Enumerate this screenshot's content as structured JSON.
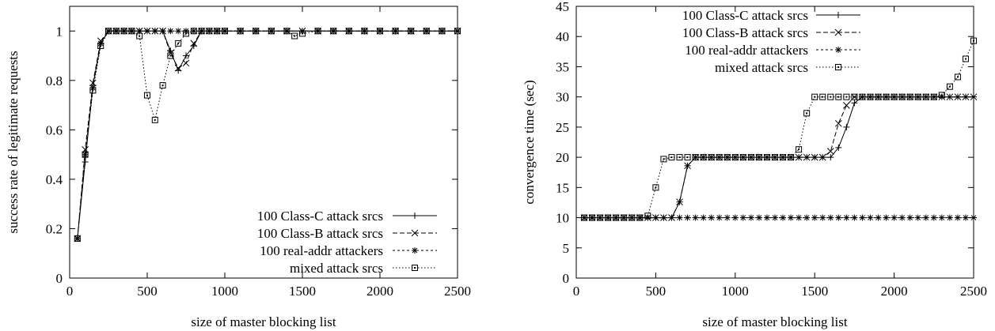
{
  "chart_data": [
    {
      "type": "line",
      "title": "",
      "xlabel": "size of master blocking list",
      "ylabel": "success rate of legitimate requests",
      "xlim": [
        0,
        2500
      ],
      "ylim": [
        0,
        1.1
      ],
      "xticks": [
        0,
        500,
        1000,
        1500,
        2000,
        2500
      ],
      "xtick_labels": [
        "0",
        "500",
        "1000",
        "1500",
        "2000",
        "2500"
      ],
      "yticks": [
        0,
        0.2,
        0.4,
        0.6,
        0.8,
        1
      ],
      "ytick_labels": [
        "0",
        "0.2",
        "0.4",
        "0.6",
        "0.8",
        "1"
      ],
      "grid": false,
      "legend_position": "bottom-right",
      "series": [
        {
          "name": "100 Class-C attack srcs",
          "marker": "plus",
          "dash": "solid",
          "x": [
            50,
            100,
            150,
            200,
            250,
            300,
            350,
            400,
            450,
            500,
            550,
            600,
            650,
            700,
            750,
            800,
            850,
            900,
            950,
            1000,
            1100,
            1200,
            1300,
            1400,
            1500,
            1600,
            1700,
            1800,
            1900,
            2000,
            2100,
            2200,
            2300,
            2400,
            2500
          ],
          "y": [
            0.16,
            0.47,
            0.78,
            0.95,
            1,
            1,
            1,
            1,
            1,
            1,
            1,
            1,
            0.92,
            0.84,
            0.9,
            0.94,
            1,
            1,
            1,
            1,
            1,
            1,
            1,
            1,
            1,
            1,
            1,
            1,
            1,
            1,
            1,
            1,
            1,
            1,
            1
          ]
        },
        {
          "name": "100 Class-B attack srcs",
          "marker": "x",
          "dash": "dashed",
          "x": [
            50,
            100,
            150,
            200,
            250,
            300,
            350,
            400,
            450,
            500,
            550,
            600,
            650,
            700,
            750,
            800,
            850,
            900,
            950,
            1000,
            1100,
            1200,
            1300,
            1400,
            1500,
            1600,
            1700,
            1800,
            1900,
            2000,
            2100,
            2200,
            2300,
            2400,
            2500
          ],
          "y": [
            0.16,
            0.52,
            0.79,
            0.96,
            1,
            1,
            1,
            1,
            1,
            1,
            1,
            1,
            0.91,
            0.85,
            0.87,
            0.95,
            1,
            1,
            1,
            1,
            1,
            1,
            1,
            1,
            1,
            1,
            1,
            1,
            1,
            1,
            1,
            1,
            1,
            1,
            1
          ]
        },
        {
          "name": "100 real-addr attackers",
          "marker": "star",
          "dash": "dotted",
          "x": [
            50,
            100,
            150,
            200,
            250,
            300,
            350,
            400,
            450,
            500,
            550,
            600,
            650,
            700,
            750,
            800,
            850,
            900,
            950,
            1000,
            1100,
            1200,
            1300,
            1400,
            1500,
            1600,
            1700,
            1800,
            1900,
            2000,
            2100,
            2200,
            2300,
            2400,
            2500
          ],
          "y": [
            0.16,
            0.5,
            0.77,
            0.95,
            1,
            1,
            1,
            1,
            1,
            1,
            1,
            1,
            1,
            1,
            1,
            1,
            1,
            1,
            1,
            1,
            1,
            1,
            1,
            1,
            1,
            1,
            1,
            1,
            1,
            1,
            1,
            1,
            1,
            1,
            1
          ]
        },
        {
          "name": "mixed attack srcs",
          "marker": "square",
          "dash": "fine-dotted",
          "x": [
            50,
            100,
            150,
            200,
            250,
            300,
            350,
            400,
            450,
            500,
            550,
            600,
            650,
            700,
            750,
            800,
            850,
            900,
            950,
            1000,
            1100,
            1200,
            1300,
            1400,
            1450,
            1500,
            1600,
            1700,
            1800,
            1900,
            2000,
            2100,
            2200,
            2300,
            2400,
            2500
          ],
          "y": [
            0.16,
            0.5,
            0.76,
            0.94,
            1,
            1,
            1,
            1,
            0.98,
            0.74,
            0.64,
            0.78,
            0.9,
            0.95,
            0.99,
            1,
            1,
            1,
            1,
            1,
            1,
            1,
            1,
            1,
            0.98,
            0.99,
            1,
            1,
            1,
            1,
            1,
            1,
            1,
            1,
            1,
            1
          ]
        }
      ]
    },
    {
      "type": "line",
      "title": "",
      "xlabel": "size of master blocking list",
      "ylabel": "convergence time (sec)",
      "xlim": [
        0,
        2500
      ],
      "ylim": [
        0,
        45
      ],
      "xticks": [
        0,
        500,
        1000,
        1500,
        2000,
        2500
      ],
      "xtick_labels": [
        "0",
        "500",
        "1000",
        "1500",
        "2000",
        "2500"
      ],
      "yticks": [
        0,
        5,
        10,
        15,
        20,
        25,
        30,
        35,
        40,
        45
      ],
      "ytick_labels": [
        "0",
        "5",
        "10",
        "15",
        "20",
        "25",
        "30",
        "35",
        "40",
        "45"
      ],
      "grid": false,
      "legend_position": "top-center",
      "series": [
        {
          "name": "100 Class-C attack srcs",
          "marker": "plus",
          "dash": "solid",
          "x": [
            50,
            100,
            150,
            200,
            250,
            300,
            350,
            400,
            450,
            500,
            550,
            600,
            650,
            700,
            750,
            800,
            850,
            900,
            950,
            1000,
            1050,
            1100,
            1150,
            1200,
            1250,
            1300,
            1350,
            1400,
            1450,
            1500,
            1550,
            1600,
            1650,
            1700,
            1750,
            1800,
            1850,
            1900,
            1950,
            2000,
            2050,
            2100,
            2150,
            2200,
            2250,
            2300,
            2350,
            2400,
            2450,
            2500
          ],
          "y": [
            10,
            10,
            10,
            10,
            10,
            10,
            10,
            10,
            10,
            10,
            10,
            10,
            12.6,
            18.6,
            20,
            20,
            20,
            20,
            20,
            20,
            20,
            20,
            20,
            20,
            20,
            20,
            20,
            20,
            20,
            20,
            20,
            20,
            21.6,
            25,
            29,
            30,
            30,
            30,
            30,
            30,
            30,
            30,
            30,
            30,
            30,
            30,
            30,
            30,
            30,
            30
          ]
        },
        {
          "name": "100 Class-B attack srcs",
          "marker": "x",
          "dash": "dashed",
          "x": [
            50,
            100,
            150,
            200,
            250,
            300,
            350,
            400,
            450,
            500,
            550,
            600,
            650,
            700,
            750,
            800,
            850,
            900,
            950,
            1000,
            1050,
            1100,
            1150,
            1200,
            1250,
            1300,
            1350,
            1400,
            1450,
            1500,
            1550,
            1600,
            1650,
            1700,
            1750,
            1800,
            1850,
            1900,
            1950,
            2000,
            2050,
            2100,
            2150,
            2200,
            2250,
            2300,
            2350,
            2400,
            2450,
            2500
          ],
          "y": [
            10,
            10,
            10,
            10,
            10,
            10,
            10,
            10,
            10,
            10,
            10,
            10,
            12.6,
            18.6,
            20,
            20,
            20,
            20,
            20,
            20,
            20,
            20,
            20,
            20,
            20,
            20,
            20,
            20,
            20,
            20,
            20,
            21,
            25.6,
            28.6,
            30,
            30,
            30,
            30,
            30,
            30,
            30,
            30,
            30,
            30,
            30,
            30,
            30,
            30,
            30,
            30
          ]
        },
        {
          "name": "100 real-addr attackers",
          "marker": "star",
          "dash": "dotted",
          "x": [
            50,
            100,
            150,
            200,
            250,
            300,
            350,
            400,
            450,
            500,
            550,
            600,
            650,
            700,
            750,
            800,
            850,
            900,
            950,
            1000,
            1050,
            1100,
            1150,
            1200,
            1250,
            1300,
            1350,
            1400,
            1450,
            1500,
            1550,
            1600,
            1650,
            1700,
            1750,
            1800,
            1850,
            1900,
            1950,
            2000,
            2050,
            2100,
            2150,
            2200,
            2250,
            2300,
            2350,
            2400,
            2450,
            2500
          ],
          "y": [
            10,
            10,
            10,
            10,
            10,
            10,
            10,
            10,
            10,
            10,
            10,
            10,
            10,
            10,
            10,
            10,
            10,
            10,
            10,
            10,
            10,
            10,
            10,
            10,
            10,
            10,
            10,
            10,
            10,
            10,
            10,
            10,
            10,
            10,
            10,
            10,
            10,
            10,
            10,
            10,
            10,
            10,
            10,
            10,
            10,
            10,
            10,
            10,
            10,
            10
          ]
        },
        {
          "name": "mixed attack srcs",
          "marker": "square",
          "dash": "fine-dotted",
          "x": [
            50,
            100,
            150,
            200,
            250,
            300,
            350,
            400,
            450,
            500,
            550,
            600,
            650,
            700,
            750,
            800,
            850,
            900,
            950,
            1000,
            1050,
            1100,
            1150,
            1200,
            1250,
            1300,
            1350,
            1400,
            1450,
            1500,
            1550,
            1600,
            1650,
            1700,
            1750,
            1800,
            1850,
            1900,
            1950,
            2000,
            2050,
            2100,
            2150,
            2200,
            2250,
            2300,
            2350,
            2400,
            2450,
            2500
          ],
          "y": [
            10,
            10,
            10,
            10,
            10,
            10,
            10,
            10,
            10.3,
            15,
            19.7,
            20,
            20,
            20,
            20,
            20,
            20,
            20,
            20,
            20,
            20,
            20,
            20,
            20,
            20,
            20,
            20,
            21.3,
            27.3,
            30,
            30,
            30,
            30,
            30,
            30,
            30,
            30,
            30,
            30,
            30,
            30,
            30,
            30,
            30,
            30,
            30.3,
            31.7,
            33.3,
            36.3,
            39.3
          ]
        }
      ]
    }
  ]
}
